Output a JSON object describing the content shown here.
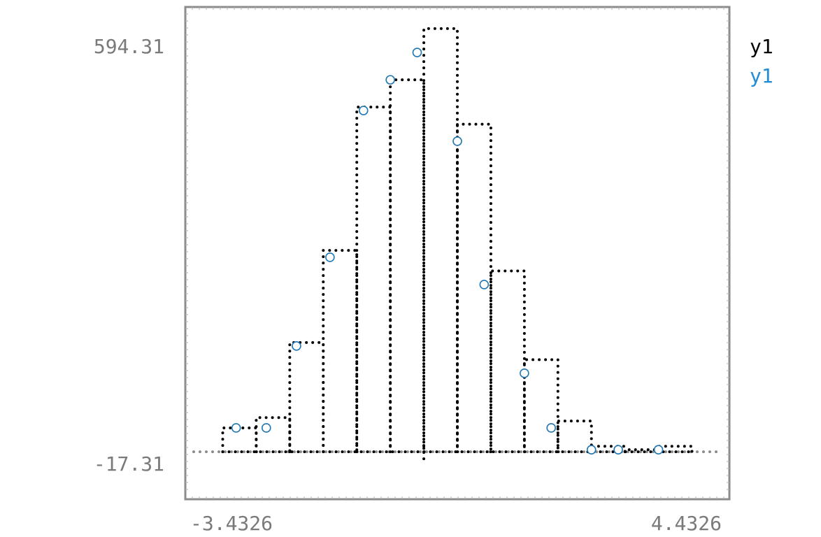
{
  "chart_data": {
    "type": "histogram",
    "xlim": [
      -3.4326,
      4.4326
    ],
    "ylim": [
      -17.31,
      594.31
    ],
    "x_tick_labels": [
      "-3.4326",
      "4.4326"
    ],
    "y_tick_labels": [
      "594.31",
      "-17.31"
    ],
    "bin_edges": [
      -3.0,
      -2.5,
      -2.0,
      -1.5,
      -1.0,
      -0.5,
      0.0,
      0.5,
      1.0,
      1.5,
      2.0,
      2.5,
      3.0,
      3.5,
      4.0
    ],
    "series": [
      {
        "name": "y1",
        "style": "dotted-step",
        "color": "#000000",
        "values": [
          35,
          50,
          160,
          295,
          505,
          545,
          620,
          480,
          265,
          135,
          45,
          8,
          3,
          8
        ]
      },
      {
        "name": "y1",
        "style": "hollow-markers",
        "color": "#1f77b4",
        "x": [
          -2.8,
          -2.35,
          -1.9,
          -1.4,
          -0.9,
          -0.5,
          -0.1,
          0.5,
          0.9,
          1.5,
          1.9,
          2.5,
          2.9,
          3.5
        ],
        "y": [
          35,
          35,
          155,
          285,
          500,
          545,
          585,
          455,
          245,
          115,
          35,
          3,
          3,
          3
        ]
      }
    ],
    "legend": {
      "placement": "top-right-outside",
      "entries": [
        {
          "label": "y1",
          "color": "#000000"
        },
        {
          "label": "y1",
          "color": "#1f8dd6"
        }
      ]
    },
    "grid": false
  },
  "colors": {
    "frame": "#8c8c8c",
    "tick_text": "#7a7a7a",
    "marker_stroke": "#1f77b4",
    "legend_y1_black": "#000000",
    "legend_y1_blue": "#1f8dd6"
  }
}
